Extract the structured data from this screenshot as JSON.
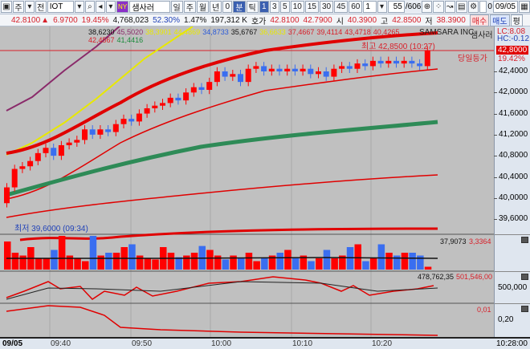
{
  "toolbar": {
    "market": "주",
    "type": "전",
    "symbol": "IOT",
    "exchange_badge": "NY",
    "name": "샘사러",
    "periods": [
      "일",
      "주",
      "월",
      "년",
      "0",
      "분",
      "틱"
    ],
    "intervals": [
      "1",
      "3",
      "5",
      "10",
      "15",
      "30",
      "45",
      "60"
    ],
    "interval_select": "1",
    "count": "55",
    "total": "/606",
    "checkbox_label": "0",
    "date": "09/05"
  },
  "quote": {
    "price": "42.8100",
    "arrow": "▲",
    "change": "6.9700",
    "change_pct": "19.45%",
    "volume": "4,768,023",
    "vol_pct": "52.30%",
    "turnover_pct": "1.47%",
    "amount": "197,312 K",
    "hoga_label": "호가",
    "hoga": "42.8100",
    "ask": "42.7900",
    "open_label": "시",
    "open": "40.3900",
    "high_label": "고",
    "high": "42.8500",
    "low_label": "저",
    "low": "38.3900",
    "buy": "매수",
    "sell": "매도",
    "avg": "평"
  },
  "legend": {
    "values": [
      "38,6230",
      "45,5020",
      "38,3901",
      "44,4869",
      "34,8733",
      "35,6767",
      "36,6633",
      "37,4667",
      "39,4114",
      "43,4718",
      "40,4265",
      "42,4567",
      "41,4416"
    ],
    "colors": [
      "#111",
      "#8a2a6a",
      "#e8e800",
      "#e8e800",
      "#2a5ad8",
      "#111",
      "#e8e800",
      "#d8202a",
      "#d8202a",
      "#d8202a",
      "#d8202a",
      "#d8202a",
      "#1a8a3a"
    ],
    "company": "SAMSARA INC",
    "company_kr": "샘사러",
    "lc": "LC:8.08",
    "hc": "HC:-0.12"
  },
  "annotations": {
    "high": "최고 42,8500 (10:27)",
    "low": "최저 39,6000 (09:34)",
    "today_change_label": "당일등가",
    "current_price": "42,8000",
    "current_pct": "19.42%"
  },
  "price_axis": [
    "42,4000",
    "42,0000",
    "41,6000",
    "41,2000",
    "40,8000",
    "40,4000",
    "40,0000",
    "39,6000"
  ],
  "volume_pane": {
    "v1": "37,9073",
    "v2": "3,3364"
  },
  "pane2": {
    "v1": "478,762,35",
    "v2": "501,546,00",
    "axis": "500,000"
  },
  "pane3": {
    "v1": "0,01",
    "axis": "0,20"
  },
  "time_axis": {
    "date": "09/05",
    "ticks": [
      "09:40",
      "09:50",
      "10:00",
      "10:10",
      "10:20"
    ],
    "end": "10:28:00"
  },
  "chart_data": {
    "type": "candlestick",
    "open": [
      39.9,
      40.2,
      40.55,
      40.6,
      40.7,
      40.85,
      40.95,
      40.8,
      41.0,
      41.05,
      41.1,
      41.3,
      41.2,
      41.3,
      41.25,
      41.4,
      41.5,
      41.45,
      41.6,
      41.7,
      41.75,
      41.8,
      41.9,
      41.85,
      42.0,
      42.1,
      42.05,
      42.2,
      42.4,
      42.3,
      42.35,
      42.2,
      42.45,
      42.5,
      42.4,
      42.45,
      42.4,
      42.45,
      42.4,
      42.45,
      42.35,
      42.4,
      42.3,
      42.45,
      42.5,
      42.45,
      42.55,
      42.5,
      42.6,
      42.55,
      42.6,
      42.55,
      42.6,
      42.55,
      42.5
    ],
    "close": [
      40.2,
      40.55,
      40.6,
      40.7,
      40.85,
      40.95,
      40.8,
      41.0,
      41.05,
      41.1,
      41.3,
      41.2,
      41.3,
      41.25,
      41.4,
      41.5,
      41.45,
      41.6,
      41.7,
      41.75,
      41.8,
      41.9,
      41.85,
      42.0,
      42.1,
      42.05,
      42.2,
      42.4,
      42.3,
      42.35,
      42.2,
      42.45,
      42.5,
      42.4,
      42.45,
      42.4,
      42.45,
      42.4,
      42.45,
      42.35,
      42.4,
      42.3,
      42.45,
      42.5,
      42.45,
      42.55,
      42.5,
      42.6,
      42.55,
      42.6,
      42.55,
      42.6,
      42.55,
      42.5,
      42.8
    ],
    "volume": [
      5,
      3,
      2.5,
      4,
      2,
      2,
      3.5,
      6,
      2.5,
      2,
      1.5,
      6,
      2.5,
      3,
      3,
      4,
      4.5,
      2.5,
      2,
      1.8,
      4,
      3,
      2.2,
      2.5,
      3,
      4.2,
      3.5,
      2.5,
      1.8,
      2.5,
      2,
      3,
      1.5,
      2,
      2.5,
      3,
      3.5,
      2,
      2.5,
      1.5,
      2,
      3.5,
      2,
      2.5,
      4,
      4.5,
      1.5,
      2,
      4.5,
      3,
      2.5,
      3,
      3,
      2.5,
      0.5
    ]
  }
}
